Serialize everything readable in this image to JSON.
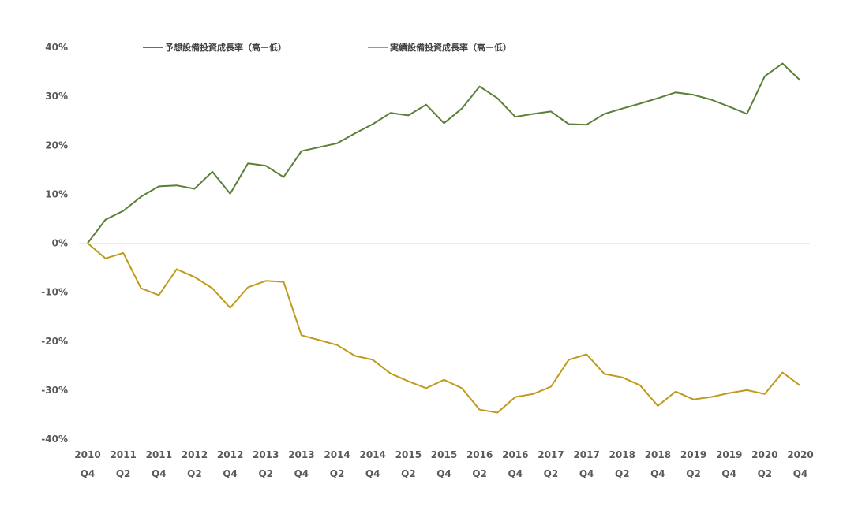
{
  "chart_data": {
    "type": "line",
    "title": "",
    "xlabel": "",
    "ylabel": "",
    "ylim": [
      -40,
      40
    ],
    "yticks": [
      40,
      30,
      20,
      10,
      0,
      -10,
      -20,
      -30,
      -40
    ],
    "ytick_labels": [
      "40%",
      "30%",
      "20%",
      "10%",
      "0%",
      "-10%",
      "-20%",
      "-30%",
      "-40%"
    ],
    "grid": false,
    "legend_position": "top",
    "x": [
      "2010Q4",
      "2011Q1",
      "2011Q2",
      "2011Q3",
      "2011Q4",
      "2012Q1",
      "2012Q2",
      "2012Q3",
      "2012Q4",
      "2013Q1",
      "2013Q2",
      "2013Q3",
      "2013Q4",
      "2014Q1",
      "2014Q2",
      "2014Q3",
      "2014Q4",
      "2015Q1",
      "2015Q2",
      "2015Q3",
      "2015Q4",
      "2016Q1",
      "2016Q2",
      "2016Q3",
      "2016Q4",
      "2017Q1",
      "2017Q2",
      "2017Q3",
      "2017Q4",
      "2018Q1",
      "2018Q2",
      "2018Q3",
      "2018Q4",
      "2019Q1",
      "2019Q2",
      "2019Q3",
      "2019Q4",
      "2020Q1",
      "2020Q2",
      "2020Q3",
      "2020Q4"
    ],
    "xtick_labels": [
      [
        "2010",
        "Q4"
      ],
      [
        "2011",
        "Q2"
      ],
      [
        "2011",
        "Q4"
      ],
      [
        "2012",
        "Q2"
      ],
      [
        "2012",
        "Q4"
      ],
      [
        "2013",
        "Q2"
      ],
      [
        "2013",
        "Q4"
      ],
      [
        "2014",
        "Q2"
      ],
      [
        "2014",
        "Q4"
      ],
      [
        "2015",
        "Q2"
      ],
      [
        "2015",
        "Q4"
      ],
      [
        "2016",
        "Q2"
      ],
      [
        "2016",
        "Q4"
      ],
      [
        "2017",
        "Q2"
      ],
      [
        "2017",
        "Q4"
      ],
      [
        "2018",
        "Q2"
      ],
      [
        "2018",
        "Q4"
      ],
      [
        "2019",
        "Q2"
      ],
      [
        "2019",
        "Q4"
      ],
      [
        "2020",
        "Q2"
      ],
      [
        "2020",
        "Q4"
      ]
    ],
    "series": [
      {
        "name": "予想設備投資成長率（高ー低）",
        "color": "#5b7f36",
        "values": [
          0,
          4.8,
          6.6,
          9.5,
          11.6,
          11.8,
          11.1,
          14.6,
          10.1,
          16.3,
          15.8,
          13.5,
          18.8,
          19.6,
          20.4,
          22.4,
          24.3,
          26.6,
          26.1,
          28.3,
          24.5,
          27.5,
          32.0,
          29.6,
          25.8,
          26.4,
          26.9,
          24.3,
          24.2,
          26.4,
          27.5,
          28.5,
          29.6,
          30.8,
          30.3,
          29.3,
          27.9,
          26.4,
          34.1,
          36.7,
          33.2
        ]
      },
      {
        "name": "実績設備投資成長率（高ー低）",
        "color": "#bf9a1c",
        "values": [
          0,
          -3.1,
          -2.0,
          -9.2,
          -10.6,
          -5.3,
          -6.9,
          -9.2,
          -13.2,
          -9.0,
          -7.7,
          -7.9,
          -18.8,
          -19.8,
          -20.8,
          -23.0,
          -23.8,
          -26.6,
          -28.2,
          -29.6,
          -27.9,
          -29.6,
          -34.0,
          -34.6,
          -31.4,
          -30.8,
          -29.3,
          -23.8,
          -22.7,
          -26.7,
          -27.4,
          -29.0,
          -33.2,
          -30.3,
          -31.9,
          -31.4,
          -30.6,
          -30.0,
          -30.8,
          -26.4,
          -29.1
        ]
      }
    ]
  }
}
